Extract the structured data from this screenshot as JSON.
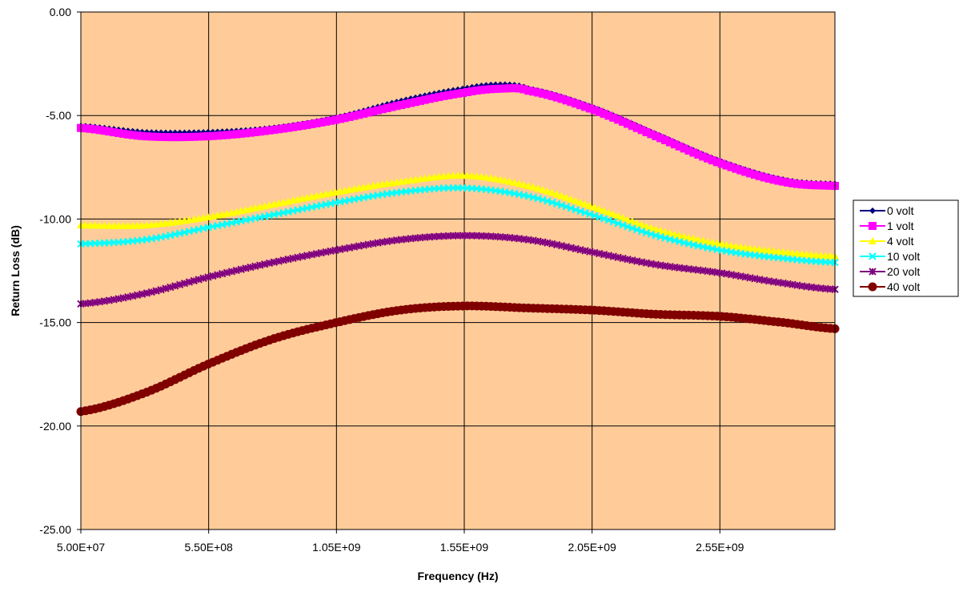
{
  "chart_data": {
    "type": "line",
    "title": "",
    "xlabel": "Frequency (Hz)",
    "ylabel": "Return Loss (dB)",
    "xlim": [
      50000000,
      3000000000
    ],
    "ylim": [
      -25,
      0
    ],
    "x_ticks": [
      50000000,
      550000000,
      1050000000,
      1550000000,
      2050000000,
      2550000000
    ],
    "x_tick_labels": [
      "5.00E+07",
      "5.50E+08",
      "1.05E+09",
      "1.55E+09",
      "2.05E+09",
      "2.55E+09"
    ],
    "y_ticks": [
      0,
      -5,
      -10,
      -15,
      -20,
      -25
    ],
    "y_tick_labels": [
      "0.00",
      "-5.00",
      "-10.00",
      "-15.00",
      "-20.00",
      "-25.00"
    ],
    "grid": true,
    "plot_background": "#FFCC99",
    "legend_position": "right",
    "series": [
      {
        "name": "0 volt",
        "color": "#000080",
        "marker": "diamond",
        "x": [
          50000000,
          300000000,
          550000000,
          800000000,
          1050000000,
          1300000000,
          1550000000,
          1700000000,
          1800000000,
          2050000000,
          2300000000,
          2550000000,
          2800000000,
          3000000000
        ],
        "y": [
          -5.5,
          -5.8,
          -5.8,
          -5.6,
          -5.1,
          -4.3,
          -3.7,
          -3.5,
          -3.7,
          -4.6,
          -5.9,
          -7.2,
          -8.1,
          -8.3
        ]
      },
      {
        "name": "1 volt",
        "color": "#FF00FF",
        "marker": "square",
        "x": [
          50000000,
          300000000,
          550000000,
          800000000,
          1050000000,
          1300000000,
          1550000000,
          1700000000,
          1800000000,
          2050000000,
          2300000000,
          2550000000,
          2800000000,
          3000000000
        ],
        "y": [
          -5.6,
          -6.0,
          -6.0,
          -5.7,
          -5.2,
          -4.5,
          -3.9,
          -3.7,
          -3.8,
          -4.7,
          -6.0,
          -7.3,
          -8.2,
          -8.4
        ]
      },
      {
        "name": "4 volt",
        "color": "#FFFF00",
        "marker": "triangle",
        "x": [
          50000000,
          300000000,
          550000000,
          800000000,
          1050000000,
          1300000000,
          1550000000,
          1800000000,
          2050000000,
          2300000000,
          2550000000,
          2800000000,
          3000000000
        ],
        "y": [
          -10.3,
          -10.3,
          -9.9,
          -9.3,
          -8.7,
          -8.2,
          -7.9,
          -8.4,
          -9.4,
          -10.5,
          -11.2,
          -11.6,
          -11.8
        ]
      },
      {
        "name": "10 volt",
        "color": "#00FFFF",
        "marker": "x",
        "x": [
          50000000,
          300000000,
          550000000,
          800000000,
          1050000000,
          1300000000,
          1550000000,
          1800000000,
          2050000000,
          2300000000,
          2550000000,
          2800000000,
          3000000000
        ],
        "y": [
          -11.2,
          -11.0,
          -10.4,
          -9.8,
          -9.2,
          -8.7,
          -8.5,
          -8.9,
          -9.8,
          -10.8,
          -11.5,
          -11.9,
          -12.1
        ]
      },
      {
        "name": "20 volt",
        "color": "#800080",
        "marker": "star",
        "x": [
          50000000,
          300000000,
          550000000,
          800000000,
          1050000000,
          1300000000,
          1550000000,
          1800000000,
          2050000000,
          2300000000,
          2550000000,
          2800000000,
          3000000000
        ],
        "y": [
          -14.1,
          -13.6,
          -12.8,
          -12.1,
          -11.5,
          -11.0,
          -10.8,
          -11.0,
          -11.6,
          -12.2,
          -12.6,
          -13.1,
          -13.4
        ]
      },
      {
        "name": "40 volt",
        "color": "#800000",
        "marker": "circle",
        "x": [
          50000000,
          300000000,
          550000000,
          800000000,
          1050000000,
          1300000000,
          1550000000,
          1800000000,
          2050000000,
          2300000000,
          2550000000,
          2800000000,
          3000000000
        ],
        "y": [
          -19.3,
          -18.4,
          -17.0,
          -15.8,
          -15.0,
          -14.4,
          -14.2,
          -14.3,
          -14.4,
          -14.6,
          -14.7,
          -15.0,
          -15.3
        ]
      }
    ]
  }
}
